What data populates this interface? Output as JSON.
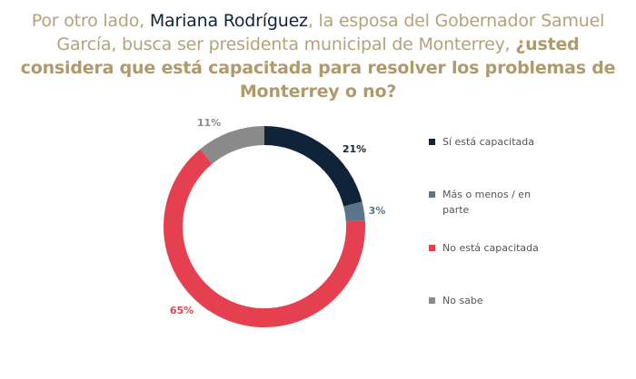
{
  "title": {
    "part1": "Por otro lado, ",
    "name": "Mariana Rodríguez",
    "part2": ", la esposa del Gobernador Samuel García, busca ser presidenta municipal de Monterrey, ",
    "question": "¿usted considera que está capacitada para resolver los problemas de Monterrey o no?"
  },
  "chart_data": {
    "type": "pie",
    "variant": "donut",
    "title": "¿usted considera que está capacitada para resolver los problemas de Monterrey o no?",
    "start_angle": "12 o'clock, clockwise",
    "legend_position": "right",
    "categories": [
      "Sí está capacitada",
      "Más o menos / en parte",
      "No está capacitada",
      "No sabe"
    ],
    "values": [
      21,
      3,
      65,
      11
    ],
    "labels": [
      "21%",
      "3%",
      "65%",
      "11%"
    ],
    "colors": [
      "#0f2438",
      "#5b7489",
      "#e5404f",
      "#8a8a8a"
    ],
    "label_colors": [
      "#0f2438",
      "#5b7489",
      "#e5404f",
      "#8a8a8a"
    ]
  }
}
